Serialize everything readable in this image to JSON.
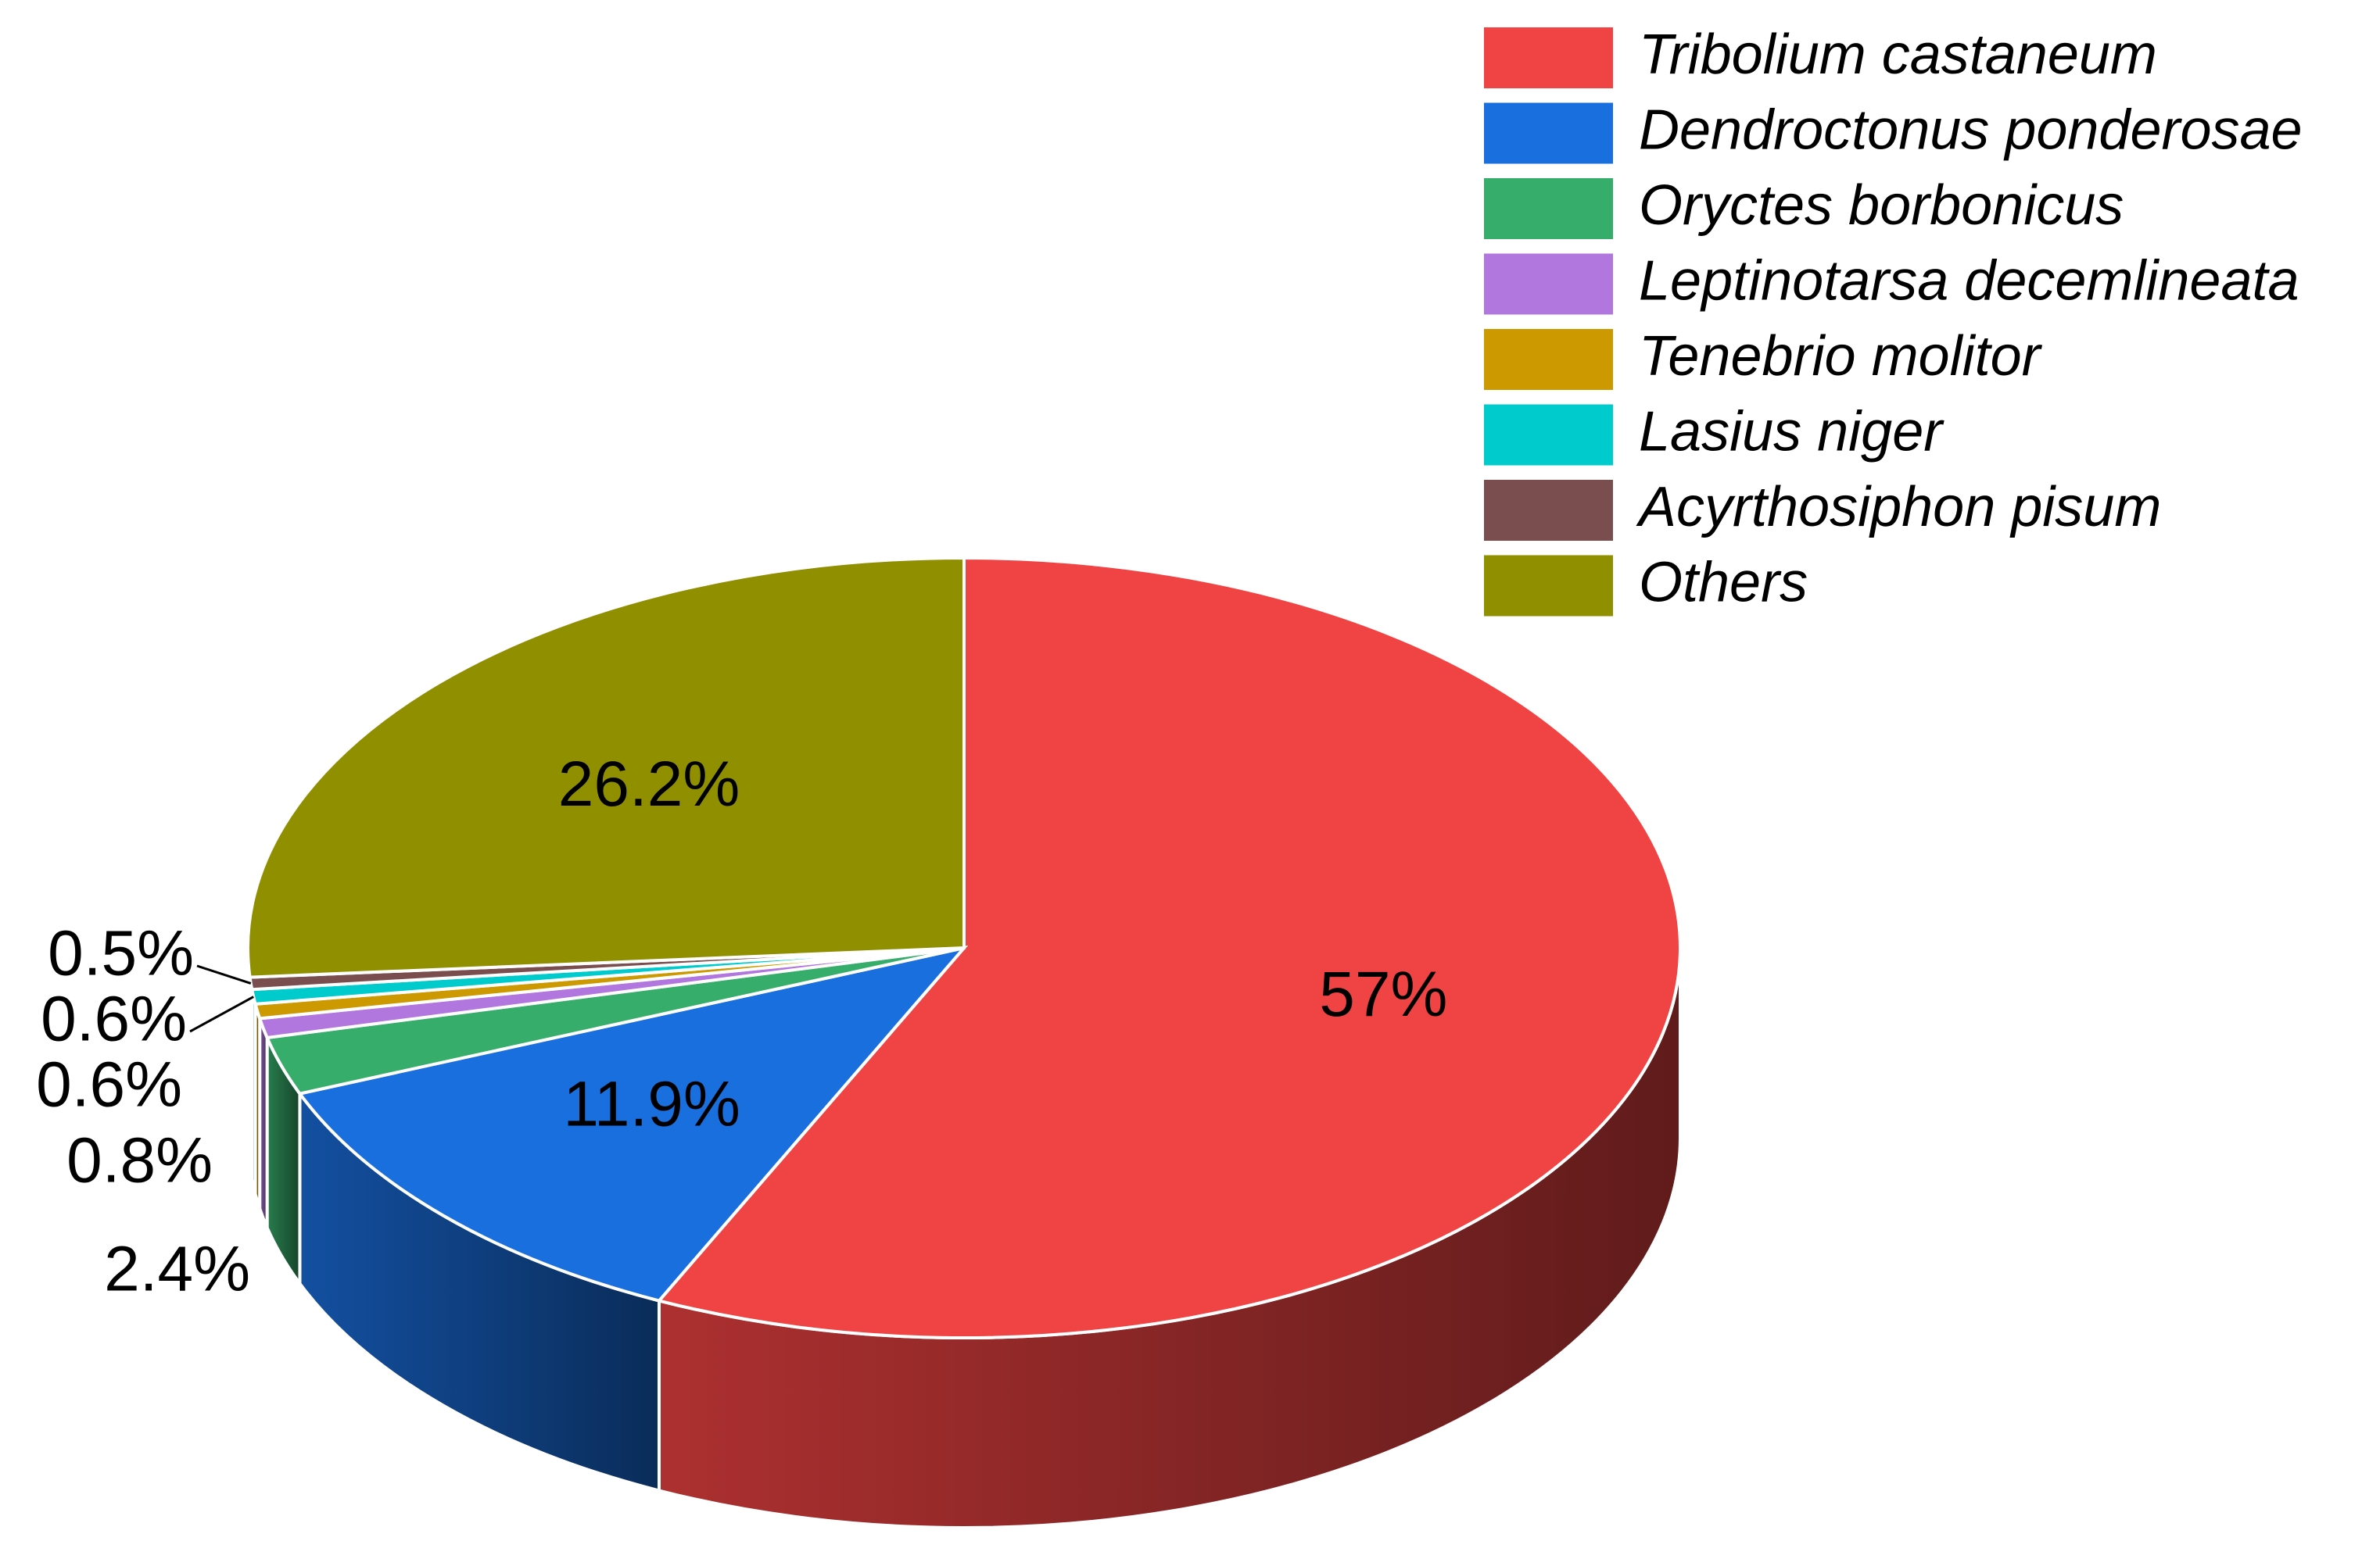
{
  "chart_data": {
    "type": "pie",
    "categories": [
      "Tribolium castaneum",
      "Dendroctonus ponderosae",
      "Oryctes borbonicus",
      "Leptinotarsa decemlineata",
      "Tenebrio molitor",
      "Lasius niger",
      "Acyrthosiphon pisum",
      "Others"
    ],
    "values": [
      57,
      11.9,
      2.4,
      0.8,
      0.6,
      0.6,
      0.5,
      26.2
    ],
    "value_labels": [
      "57%",
      "11.9%",
      "2.4%",
      "0.8%",
      "0.6%",
      "0.6%",
      "0.5%",
      "26.2%"
    ],
    "colors": [
      "#f04343",
      "#1a6fdf",
      "#37ad6b",
      "#b177de",
      "#cc9900",
      "#00cbcc",
      "#7a4e4e",
      "#8f8f00"
    ],
    "legend": "upper right"
  }
}
